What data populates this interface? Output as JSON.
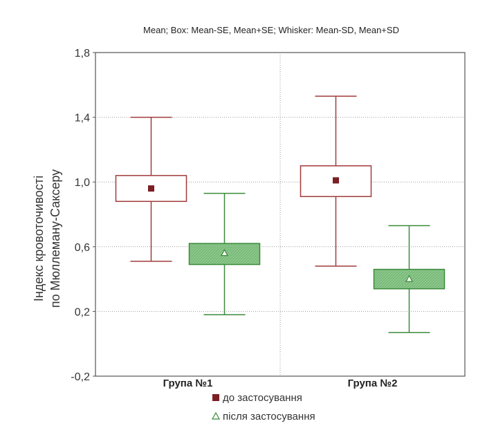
{
  "chart_data": {
    "type": "boxplot",
    "title": "Mean; Box: Mean-SE, Mean+SE; Whisker: Mean-SD, Mean+SD",
    "ylabel_lines": [
      "Індекс кровоточивості",
      "по Мюллеману-Саксеру"
    ],
    "xlabel": "",
    "ylim": [
      -0.2,
      1.8
    ],
    "yticks": [
      -0.2,
      0.2,
      0.6,
      1.0,
      1.4,
      1.8
    ],
    "ytick_labels": [
      "-0,2",
      "0,2",
      "0,6",
      "1,0",
      "1,4",
      "1,8"
    ],
    "categories": [
      "Група №1",
      "Група №2"
    ],
    "grid": true,
    "legend_position": "bottom",
    "series": [
      {
        "name": "до застосування",
        "color": "#a03a3a",
        "fill": "#ffffff",
        "marker": "square",
        "marker_color": "#7a1f24",
        "mean": [
          0.96,
          1.01
        ],
        "box_low": [
          0.88,
          0.91
        ],
        "box_high": [
          1.04,
          1.1
        ],
        "whisker_low": [
          0.51,
          0.48
        ],
        "whisker_high": [
          1.4,
          1.53
        ]
      },
      {
        "name": "після застосування",
        "color": "#3a8a3a",
        "fill": "#8dc88d",
        "marker": "triangle",
        "marker_color": "#3a8a3a",
        "mean": [
          0.56,
          0.4
        ],
        "box_low": [
          0.49,
          0.34
        ],
        "box_high": [
          0.62,
          0.46
        ],
        "whisker_low": [
          0.18,
          0.07
        ],
        "whisker_high": [
          0.93,
          0.73
        ]
      }
    ]
  }
}
